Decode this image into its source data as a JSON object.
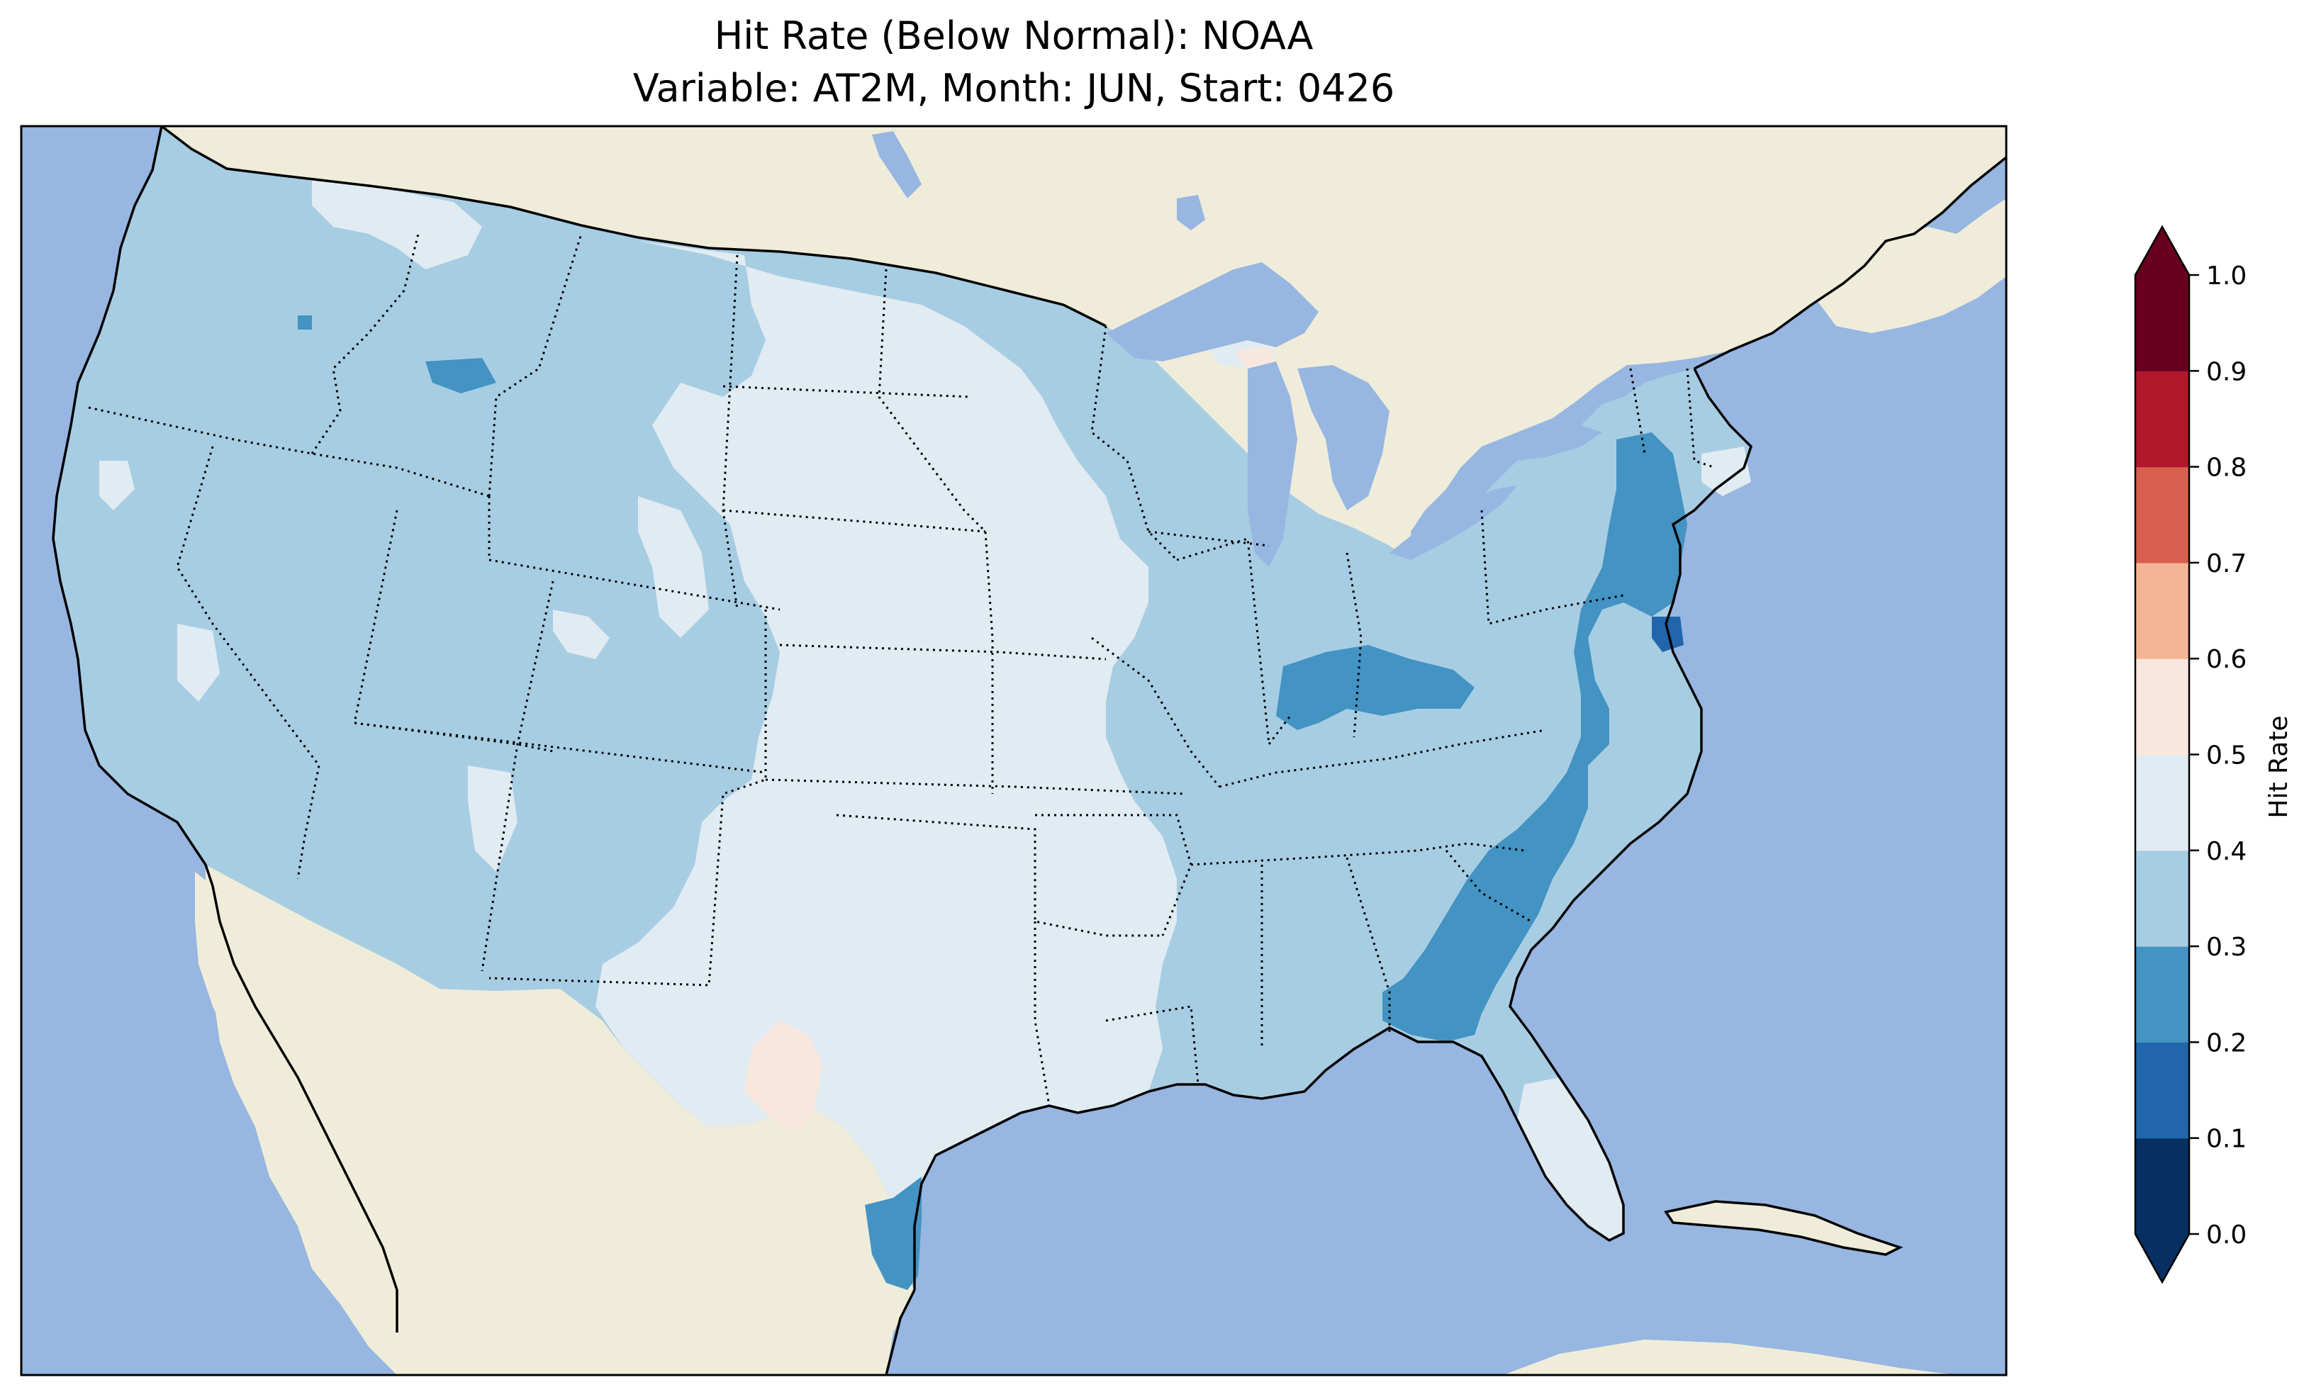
{
  "title": {
    "line1": "Hit Rate (Below Normal): NOAA",
    "line2": "Variable: AT2M, Month: JUN, Start: 0426"
  },
  "colors": {
    "ocean": "#97b6e1",
    "land": "#efedda",
    "lakes": "#97b6e1",
    "frame": "#000000"
  },
  "colorbar": {
    "label": "Hit Rate",
    "ticks": [
      "0.0",
      "0.1",
      "0.2",
      "0.3",
      "0.4",
      "0.5",
      "0.6",
      "0.7",
      "0.8",
      "0.9",
      "1.0"
    ],
    "bins": [
      {
        "range": [
          0.0,
          0.1
        ],
        "color": "#053061"
      },
      {
        "range": [
          0.1,
          0.2
        ],
        "color": "#2166ac"
      },
      {
        "range": [
          0.2,
          0.3
        ],
        "color": "#4393c3"
      },
      {
        "range": [
          0.3,
          0.4
        ],
        "color": "#a7cde3"
      },
      {
        "range": [
          0.4,
          0.5
        ],
        "color": "#e1ebf2"
      },
      {
        "range": [
          0.5,
          0.6
        ],
        "color": "#f9e7de"
      },
      {
        "range": [
          0.6,
          0.7
        ],
        "color": "#f4b597"
      },
      {
        "range": [
          0.7,
          0.8
        ],
        "color": "#d6604d"
      },
      {
        "range": [
          0.8,
          0.9
        ],
        "color": "#b2182b"
      },
      {
        "range": [
          0.9,
          1.0
        ],
        "color": "#67001f"
      }
    ],
    "extend": "both"
  },
  "map_regions": {
    "conus_base": {
      "bin": "0.3-0.4"
    },
    "central_plains": {
      "bin": "0.4-0.5"
    },
    "florida_peninsula": {
      "bin": "0.4-0.5"
    },
    "southeast_coast": {
      "bin": "0.2-0.3"
    },
    "mid_atlantic_coast": {
      "bin": "0.2-0.3"
    },
    "ohio_valley": {
      "bin": "0.2-0.3"
    },
    "texas_gulf_coast": {
      "bin": "0.2-0.3"
    },
    "southwest_texas_spot": {
      "bin": "0.5-0.6"
    },
    "chesapeake_spot": {
      "bin": "0.1-0.2"
    }
  }
}
